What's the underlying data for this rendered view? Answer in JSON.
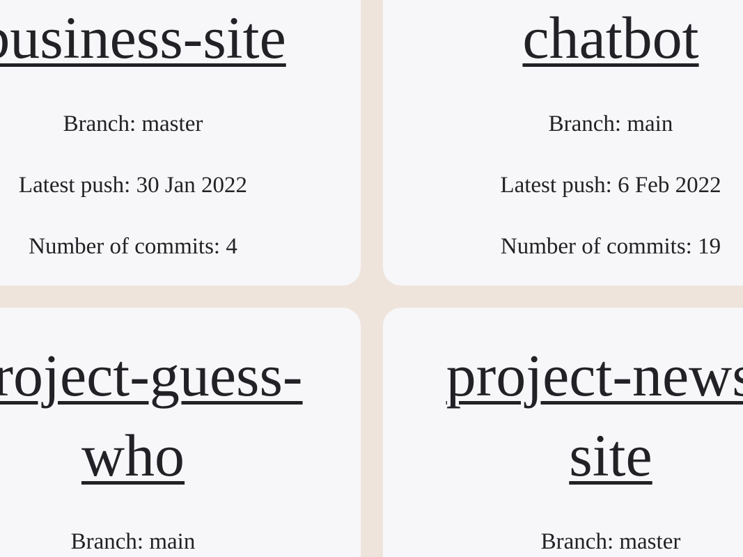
{
  "cards": [
    {
      "name": "business-site",
      "details": [
        "Branch: master",
        "Latest push: 30 Jan 2022",
        "Number of commits: 4"
      ]
    },
    {
      "name": "chatbot",
      "details": [
        "Branch: main",
        "Latest push: 6 Feb 2022",
        "Number of commits: 19"
      ]
    },
    {
      "name": "project-guess-who",
      "details": [
        "Branch: main"
      ]
    },
    {
      "name": "project-news-site",
      "details": [
        "Branch: master"
      ]
    }
  ]
}
